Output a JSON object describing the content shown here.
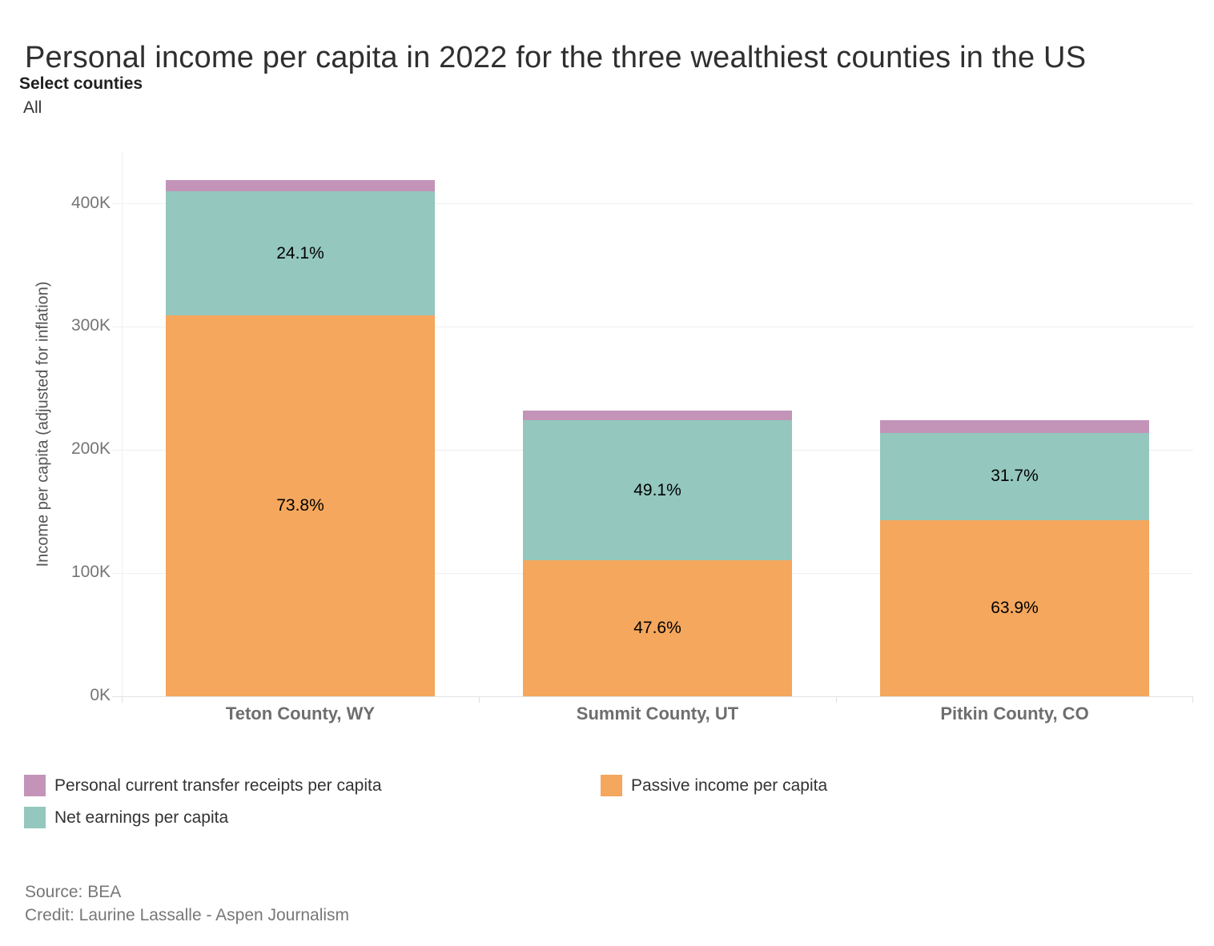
{
  "filter": {
    "label": "Select counties",
    "value": "All"
  },
  "chart_data": {
    "type": "bar",
    "stacked": true,
    "title": "Personal income per capita in 2022 for the three wealthiest counties in the US",
    "xlabel": "",
    "ylabel": "Income per capita (adjusted for inflation)",
    "categories": [
      "Teton County, WY",
      "Summit County, UT",
      "Pitkin County, CO"
    ],
    "series": [
      {
        "name": "Passive income per capita",
        "color": "#F4A75D",
        "values": [
          309200,
          110400,
          143100
        ],
        "pct_labels": [
          "73.8%",
          "47.6%",
          "63.9%"
        ]
      },
      {
        "name": "Net earnings per capita",
        "color": "#94C7BE",
        "values": [
          101000,
          113900,
          71000
        ],
        "pct_labels": [
          "24.1%",
          "49.1%",
          "31.7%"
        ]
      },
      {
        "name": "Personal current transfer receipts per capita",
        "color": "#C394B8",
        "values": [
          8800,
          7700,
          9900
        ],
        "pct_labels": [
          "",
          "",
          ""
        ]
      }
    ],
    "y_ticks": [
      {
        "value": 0,
        "label": "0K"
      },
      {
        "value": 100000,
        "label": "100K"
      },
      {
        "value": 200000,
        "label": "200K"
      },
      {
        "value": 300000,
        "label": "300K"
      },
      {
        "value": 400000,
        "label": "400K"
      }
    ],
    "ylim": [
      0,
      442000
    ],
    "grid": "horizontal",
    "legend_position": "bottom"
  },
  "legend": {
    "items": [
      {
        "label": "Personal current transfer receipts per capita",
        "color": "#C394B8"
      },
      {
        "label": "Passive income per capita",
        "color": "#F4A75D"
      },
      {
        "label": "Net earnings per capita",
        "color": "#94C7BE"
      }
    ]
  },
  "footer": {
    "source": "Source: BEA",
    "credit": "Credit: Laurine Lassalle - Aspen Journalism"
  }
}
